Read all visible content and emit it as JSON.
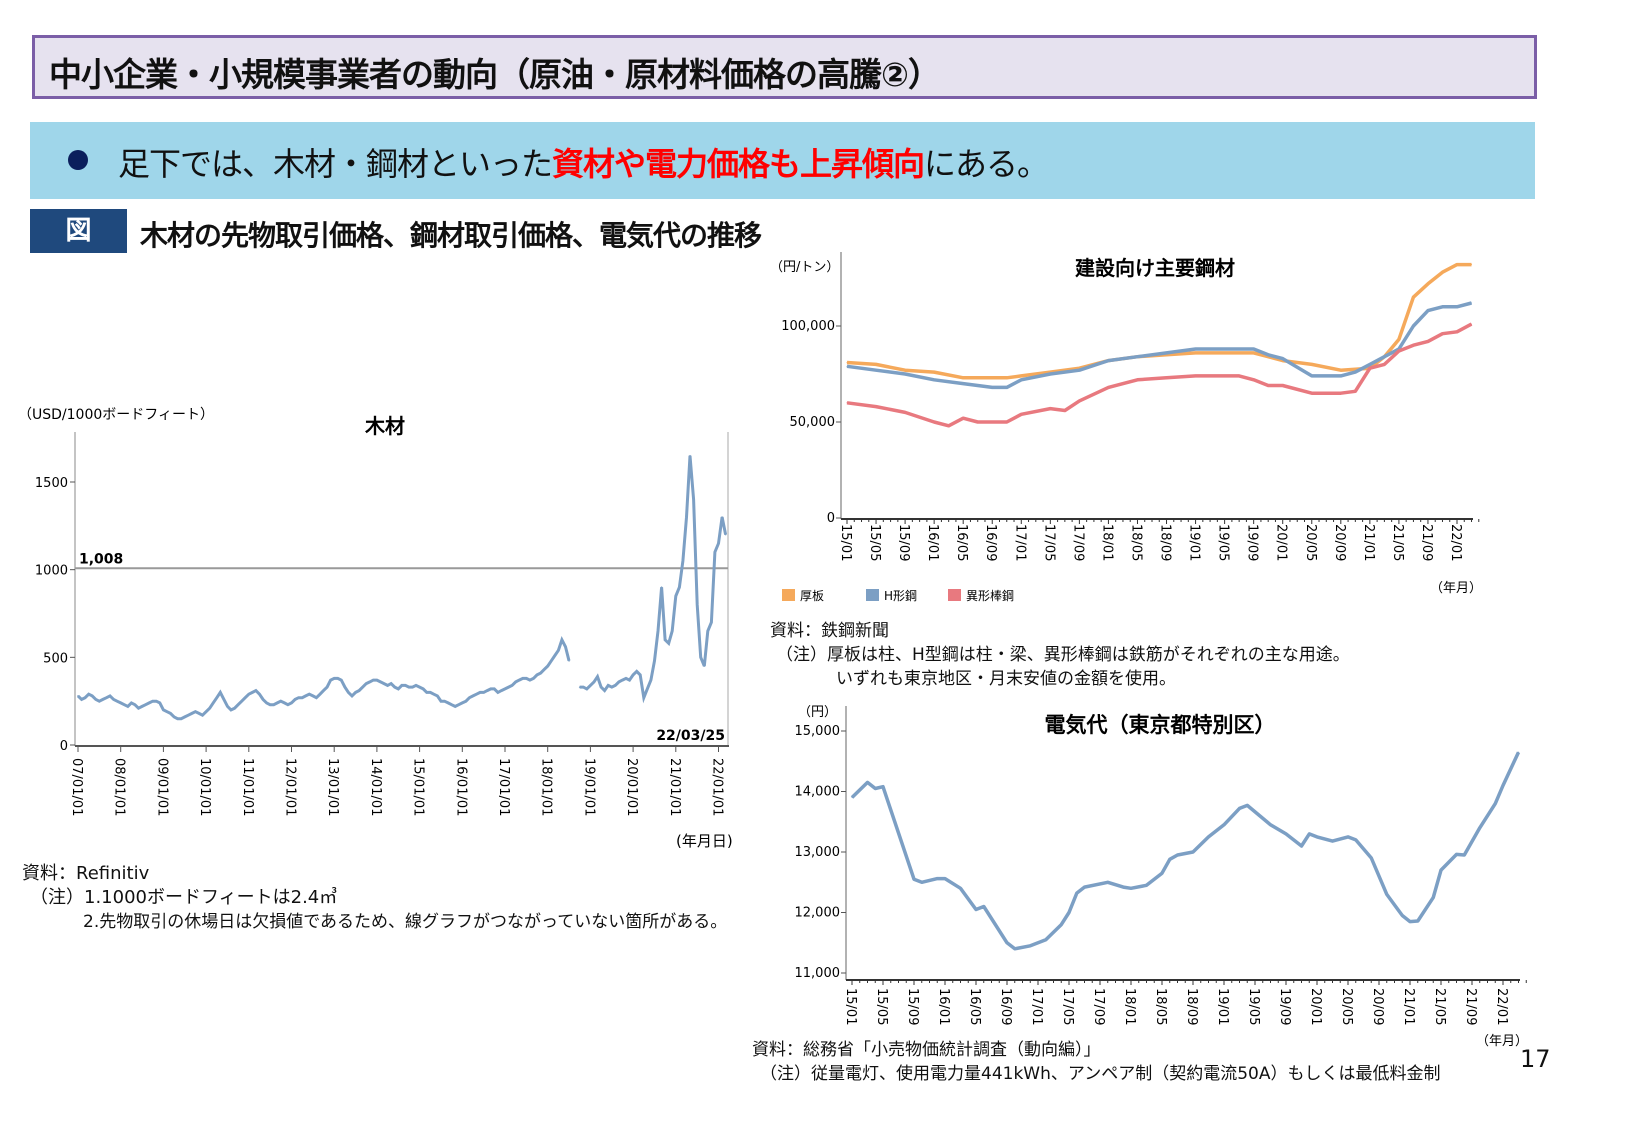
{
  "header": {
    "title": "中小企業・小規模事業者の動向（原油・原材料価格の高騰②）"
  },
  "summary": {
    "bullet_pre": "足下では、木材・鋼材といった",
    "bullet_highlight": "資材や電力価格も上昇傾向",
    "bullet_post": "にある。"
  },
  "figure": {
    "tag": "図",
    "title": "木材の先物取引価格、鋼材取引価格、電気代の推移"
  },
  "lumber_notes": {
    "source": "資料：Refinitiv",
    "note1": "（注）1.1000ボードフィートは2.4㎥",
    "note2": "2.先物取引の休場日は欠損値であるため、線グラフがつながっていない箇所がある。"
  },
  "steel_notes": {
    "source": "資料：鉄鋼新聞",
    "note1": "（注）厚板は柱、H型鋼は柱・梁、異形棒鋼は鉄筋がそれぞれの主な用途。",
    "note2": "いずれも東京地区・月末安値の金額を使用。"
  },
  "elec_notes": {
    "source": "資料：総務省「小売物価統計調査（動向編）」",
    "note1": "（注）従量電灯、使用電力量441kWh、アンペア制（契約電流50A）もしくは最低料金制"
  },
  "page_number": "17",
  "chart_data": [
    {
      "type": "line",
      "title": "木材",
      "ylabel": "（USD/1000ボードフィート）",
      "xlabel": "(年月日)",
      "ylim": [
        0,
        1780
      ],
      "yticks": [
        0,
        500,
        1000,
        1500
      ],
      "xticks": [
        "07/01/01",
        "08/01/01",
        "09/01/01",
        "10/01/01",
        "11/01/01",
        "12/01/01",
        "13/01/01",
        "14/01/01",
        "15/01/01",
        "16/01/01",
        "17/01/01",
        "18/01/01",
        "19/01/01",
        "20/01/01",
        "21/01/01",
        "22/01/01"
      ],
      "reference_line": {
        "value": 1008,
        "label": "1,008"
      },
      "end_label": "22/03/25",
      "x_start": "2007-01",
      "frequency": "monthly",
      "color": "#7c9fc4",
      "values": [
        280,
        260,
        270,
        290,
        280,
        260,
        250,
        260,
        270,
        280,
        260,
        250,
        240,
        230,
        220,
        240,
        230,
        210,
        220,
        230,
        240,
        250,
        250,
        240,
        200,
        190,
        180,
        160,
        150,
        150,
        160,
        170,
        180,
        190,
        180,
        170,
        190,
        210,
        240,
        270,
        300,
        260,
        220,
        200,
        210,
        230,
        250,
        270,
        290,
        300,
        310,
        290,
        260,
        240,
        230,
        230,
        240,
        250,
        240,
        230,
        240,
        260,
        270,
        270,
        280,
        290,
        280,
        270,
        290,
        310,
        330,
        370,
        380,
        380,
        370,
        330,
        300,
        280,
        300,
        310,
        330,
        350,
        360,
        370,
        370,
        360,
        350,
        340,
        350,
        330,
        320,
        340,
        340,
        330,
        330,
        340,
        330,
        320,
        300,
        300,
        290,
        280,
        250,
        250,
        240,
        230,
        220,
        230,
        240,
        250,
        270,
        280,
        290,
        300,
        300,
        310,
        320,
        320,
        300,
        310,
        320,
        330,
        340,
        360,
        370,
        380,
        380,
        370,
        380,
        400,
        410,
        430,
        450,
        480,
        510,
        540,
        600,
        560,
        480,
        null,
        null,
        330,
        330,
        320,
        340,
        360,
        390,
        330,
        310,
        340,
        330,
        340,
        360,
        370,
        380,
        370,
        400,
        420,
        400,
        270,
        320,
        370,
        480,
        650,
        900,
        600,
        580,
        650,
        850,
        900,
        1050,
        1300,
        1650,
        1400,
        800,
        500,
        450,
        650,
        700,
        1100,
        1150,
        1300,
        1200
      ]
    },
    {
      "type": "line",
      "title": "建設向け主要鋼材",
      "ylabel": "（円/トン）",
      "xlabel": "（年月）",
      "ylim": [
        0,
        125000
      ],
      "yticks": [
        {
          "v": 0,
          "label": "0"
        },
        {
          "v": 50000,
          "label": "50,000"
        },
        {
          "v": 100000,
          "label": "100,000"
        }
      ],
      "xticks": [
        "15/01",
        "15/05",
        "15/09",
        "16/01",
        "16/05",
        "16/09",
        "17/01",
        "17/05",
        "17/09",
        "18/01",
        "18/05",
        "18/09",
        "19/01",
        "19/05",
        "19/09",
        "20/01",
        "20/05",
        "20/09",
        "21/01",
        "21/05",
        "21/09",
        "22/01"
      ],
      "series": [
        {
          "name": "厚板",
          "color": "#f5a95b",
          "points": [
            [
              "15/01",
              81000
            ],
            [
              "15/05",
              80000
            ],
            [
              "15/09",
              77000
            ],
            [
              "16/01",
              76000
            ],
            [
              "16/05",
              73000
            ],
            [
              "16/11",
              73000
            ],
            [
              "17/01",
              74000
            ],
            [
              "17/05",
              76000
            ],
            [
              "17/09",
              78000
            ],
            [
              "18/01",
              82000
            ],
            [
              "18/05",
              84000
            ],
            [
              "18/09",
              85000
            ],
            [
              "19/01",
              86000
            ],
            [
              "19/09",
              86000
            ],
            [
              "19/11",
              84000
            ],
            [
              "20/01",
              82000
            ],
            [
              "20/05",
              80000
            ],
            [
              "20/09",
              77000
            ],
            [
              "21/01",
              78000
            ],
            [
              "21/03",
              84000
            ],
            [
              "21/05",
              93000
            ],
            [
              "21/07",
              115000
            ],
            [
              "21/09",
              122000
            ],
            [
              "21/11",
              128000
            ],
            [
              "22/01",
              132000
            ],
            [
              "22/03",
              132000
            ]
          ]
        },
        {
          "name": "H形鋼",
          "color": "#7c9fc4",
          "points": [
            [
              "15/01",
              79000
            ],
            [
              "15/05",
              77000
            ],
            [
              "15/09",
              75000
            ],
            [
              "16/01",
              72000
            ],
            [
              "16/05",
              70000
            ],
            [
              "16/09",
              68000
            ],
            [
              "16/11",
              68000
            ],
            [
              "17/01",
              72000
            ],
            [
              "17/05",
              75000
            ],
            [
              "17/09",
              77000
            ],
            [
              "18/01",
              82000
            ],
            [
              "18/05",
              84000
            ],
            [
              "18/09",
              86000
            ],
            [
              "19/01",
              88000
            ],
            [
              "19/09",
              88000
            ],
            [
              "19/11",
              85000
            ],
            [
              "20/01",
              83000
            ],
            [
              "20/05",
              74000
            ],
            [
              "20/09",
              74000
            ],
            [
              "20/11",
              76000
            ],
            [
              "21/01",
              80000
            ],
            [
              "21/03",
              84000
            ],
            [
              "21/05",
              88000
            ],
            [
              "21/07",
              100000
            ],
            [
              "21/09",
              108000
            ],
            [
              "21/11",
              110000
            ],
            [
              "22/01",
              110000
            ],
            [
              "22/03",
              112000
            ]
          ]
        },
        {
          "name": "異形棒鋼",
          "color": "#e8797f",
          "points": [
            [
              "15/01",
              60000
            ],
            [
              "15/05",
              58000
            ],
            [
              "15/09",
              55000
            ],
            [
              "16/01",
              50000
            ],
            [
              "16/03",
              48000
            ],
            [
              "16/05",
              52000
            ],
            [
              "16/07",
              50000
            ],
            [
              "16/11",
              50000
            ],
            [
              "17/01",
              54000
            ],
            [
              "17/05",
              57000
            ],
            [
              "17/07",
              56000
            ],
            [
              "17/09",
              61000
            ],
            [
              "18/01",
              68000
            ],
            [
              "18/05",
              72000
            ],
            [
              "18/09",
              73000
            ],
            [
              "19/01",
              74000
            ],
            [
              "19/07",
              74000
            ],
            [
              "19/09",
              72000
            ],
            [
              "19/11",
              69000
            ],
            [
              "20/01",
              69000
            ],
            [
              "20/05",
              65000
            ],
            [
              "20/09",
              65000
            ],
            [
              "20/11",
              66000
            ],
            [
              "21/01",
              78000
            ],
            [
              "21/03",
              80000
            ],
            [
              "21/05",
              87000
            ],
            [
              "21/07",
              90000
            ],
            [
              "21/09",
              92000
            ],
            [
              "21/11",
              96000
            ],
            [
              "22/01",
              97000
            ],
            [
              "22/03",
              101000
            ]
          ]
        }
      ]
    },
    {
      "type": "line",
      "title": "電気代（東京都特別区）",
      "ylabel": "（円）",
      "xlabel": "（年月）",
      "ylim": [
        11000,
        15000
      ],
      "yticks": [
        {
          "v": 11000,
          "label": "11,000"
        },
        {
          "v": 12000,
          "label": "12,000"
        },
        {
          "v": 13000,
          "label": "13,000"
        },
        {
          "v": 14000,
          "label": "14,000"
        },
        {
          "v": 15000,
          "label": "15,000"
        }
      ],
      "xticks": [
        "15/01",
        "15/05",
        "15/09",
        "16/01",
        "16/05",
        "16/09",
        "17/01",
        "17/05",
        "17/09",
        "18/01",
        "18/05",
        "18/09",
        "19/01",
        "19/05",
        "19/09",
        "20/01",
        "20/05",
        "20/09",
        "21/01",
        "21/05",
        "21/09",
        "22/01"
      ],
      "series": [
        {
          "name": "電気代",
          "color": "#7c9fc4",
          "points": [
            [
              "15/01",
              13900
            ],
            [
              "15/03",
              14150
            ],
            [
              "15/04",
              14050
            ],
            [
              "15/05",
              14080
            ],
            [
              "15/09",
              12550
            ],
            [
              "15/10",
              12500
            ],
            [
              "15/12",
              12560
            ],
            [
              "16/01",
              12560
            ],
            [
              "16/03",
              12400
            ],
            [
              "16/05",
              12050
            ],
            [
              "16/06",
              12100
            ],
            [
              "16/09",
              11500
            ],
            [
              "16/10",
              11400
            ],
            [
              "16/12",
              11450
            ],
            [
              "17/02",
              11550
            ],
            [
              "17/04",
              11800
            ],
            [
              "17/05",
              12000
            ],
            [
              "17/06",
              12320
            ],
            [
              "17/07",
              12420
            ],
            [
              "17/10",
              12500
            ],
            [
              "17/12",
              12420
            ],
            [
              "18/01",
              12400
            ],
            [
              "18/03",
              12450
            ],
            [
              "18/05",
              12650
            ],
            [
              "18/06",
              12880
            ],
            [
              "18/07",
              12950
            ],
            [
              "18/09",
              13000
            ],
            [
              "18/11",
              13250
            ],
            [
              "19/01",
              13450
            ],
            [
              "19/03",
              13720
            ],
            [
              "19/04",
              13770
            ],
            [
              "19/07",
              13450
            ],
            [
              "19/09",
              13300
            ],
            [
              "19/11",
              13100
            ],
            [
              "19/12",
              13300
            ],
            [
              "20/01",
              13250
            ],
            [
              "20/03",
              13180
            ],
            [
              "20/05",
              13250
            ],
            [
              "20/06",
              13200
            ],
            [
              "20/08",
              12900
            ],
            [
              "20/10",
              12300
            ],
            [
              "20/12",
              11950
            ],
            [
              "21/01",
              11850
            ],
            [
              "21/02",
              11860
            ],
            [
              "21/04",
              12250
            ],
            [
              "21/05",
              12700
            ],
            [
              "21/07",
              12960
            ],
            [
              "21/08",
              12950
            ],
            [
              "21/10",
              13400
            ],
            [
              "21/12",
              13800
            ],
            [
              "22/01",
              14100
            ],
            [
              "22/03",
              14650
            ]
          ]
        }
      ]
    }
  ]
}
